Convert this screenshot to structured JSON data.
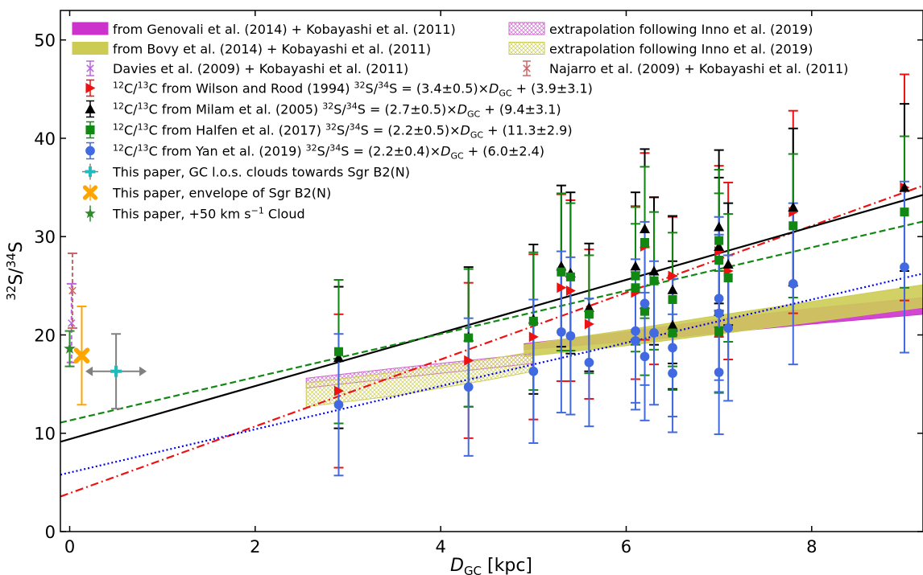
{
  "chart_data": {
    "type": "scatter",
    "xlabel_main": "D",
    "xlabel_sub": "GC",
    "xlabel_unit": " [kpc]",
    "ylabel_base": "S/",
    "ylabel_sup1": "32",
    "ylabel_sup2": "34",
    "ylabel_tail": "S",
    "xlim": [
      -0.1,
      9.2
    ],
    "ylim": [
      0,
      53
    ],
    "xticks": [
      0,
      2,
      4,
      6,
      8
    ],
    "yticks": [
      0,
      10,
      20,
      30,
      40,
      50
    ],
    "grid": false,
    "legend_placement": "top-left (two columns)",
    "legend": [
      {
        "text": "from Genovali et al. (2014) + Kobayashi et al. (2011)",
        "swatch": "band-solid",
        "color": "#cc33cc",
        "col": 0
      },
      {
        "text": "from Bovy et al. (2014) + Kobayashi et al. (2011)",
        "swatch": "band-solid",
        "color": "#cccc55",
        "col": 0
      },
      {
        "text": "Davies et al. (2009) + Kobayashi et al. (2011)",
        "swatch": "x",
        "color": "#bb66dd",
        "col": 0
      },
      {
        "text": "extrapolation following Inno et al. (2019)",
        "swatch": "band-hatch",
        "color": "#cc66cc",
        "col": 1
      },
      {
        "text": "extrapolation following Inno et al. (2019)",
        "swatch": "band-hatch",
        "color": "#cccc55",
        "col": 1
      },
      {
        "text": "Najarro et al. (2009) + Kobayashi et al. (2011)",
        "swatch": "x",
        "color": "#cc6666",
        "col": 1
      }
    ],
    "legend_series": [
      {
        "pre": "12",
        "mid": "C/",
        "pre2": "13",
        "text": "C from Wilson and Rood (1994)",
        "fit": "S = (3.4±0.5)×",
        "fit_tail": " + (3.9±3.1)",
        "marker": "triangle-right",
        "color": "#ee1111"
      },
      {
        "pre": "12",
        "mid": "C/",
        "pre2": "13",
        "text": "C from Milam et al. (2005)",
        "fit": "S = (2.7±0.5)×",
        "fit_tail": " + (9.4±3.1)",
        "marker": "triangle-up",
        "color": "#000000"
      },
      {
        "pre": "12",
        "mid": "C/",
        "pre2": "13",
        "text": "C from Halfen et al. (2017)",
        "fit": "S = (2.2±0.5)×",
        "fit_tail": " + (11.3±2.9)",
        "marker": "square",
        "color": "#118811"
      },
      {
        "pre": "12",
        "mid": "C/",
        "pre2": "13",
        "text": "C from Yan et al. (2019)",
        "fit": "S = (2.2±0.4)×",
        "fit_tail": " + (6.0±2.4)",
        "marker": "circle",
        "color": "#4169e1"
      }
    ],
    "legend_paper": [
      {
        "text": "This paper, GC l.o.s. clouds towards Sgr B2(N)",
        "marker": "plus",
        "color": "#22bbbb"
      },
      {
        "text": "This paper, envelope of Sgr B2(N)",
        "marker": "x-thick",
        "color": "#ffa500"
      },
      {
        "text": "This paper, +50 km s",
        "sup": "−1",
        "tail": " Cloud",
        "marker": "star",
        "color": "#2e8b2e"
      }
    ],
    "fit_lines": [
      {
        "name": "Wilson and Rood (1994)",
        "slope": 3.4,
        "intercept": 3.9,
        "style": "dashdot",
        "color": "#ee1111"
      },
      {
        "name": "Milam et al. (2005)",
        "slope": 2.7,
        "intercept": 9.4,
        "style": "solid",
        "color": "#000000"
      },
      {
        "name": "Halfen et al. (2017)",
        "slope": 2.2,
        "intercept": 11.3,
        "style": "dashed",
        "color": "#118811"
      },
      {
        "name": "Yan et al. (2019)",
        "slope": 2.2,
        "intercept": 6.0,
        "style": "dotted",
        "color": "#0000ee"
      }
    ],
    "bands": [
      {
        "name": "Genovali magenta",
        "color": "#cc33cc",
        "hatch": false,
        "points": [
          [
            4.9,
            18.5,
            19.1
          ],
          [
            6.0,
            19.3,
            20.3
          ],
          [
            7.0,
            20.2,
            21.6
          ],
          [
            8.0,
            21.1,
            22.7
          ],
          [
            9.2,
            22.1,
            23.8
          ]
        ]
      },
      {
        "name": "Bovy yellow",
        "color": "#cccc55",
        "hatch": false,
        "points": [
          [
            4.9,
            17.8,
            19.0
          ],
          [
            6.0,
            18.9,
            20.5
          ],
          [
            7.0,
            20.1,
            22.0
          ],
          [
            8.0,
            21.3,
            23.4
          ],
          [
            9.2,
            22.8,
            25.1
          ]
        ]
      },
      {
        "name": "Inno magenta",
        "color": "#cc66cc",
        "hatch": true,
        "points": [
          [
            2.55,
            14.6,
            15.6
          ],
          [
            3.5,
            15.6,
            16.6
          ],
          [
            4.5,
            16.6,
            17.6
          ],
          [
            5.0,
            17.1,
            18.1
          ]
        ]
      },
      {
        "name": "Inno yellow",
        "color": "#cccc55",
        "hatch": true,
        "points": [
          [
            2.55,
            12.7,
            15.1
          ],
          [
            3.5,
            13.8,
            16.2
          ],
          [
            4.5,
            15.4,
            17.5
          ],
          [
            5.0,
            16.3,
            18.3
          ]
        ]
      }
    ],
    "series": [
      {
        "name": "Wilson and Rood (1994)",
        "marker": "triangle-right",
        "color": "#ee1111",
        "points": [
          [
            2.9,
            14.3,
            7.8
          ],
          [
            4.3,
            17.4,
            7.9
          ],
          [
            5.0,
            19.8,
            8.4
          ],
          [
            5.3,
            24.8,
            9.5
          ],
          [
            5.4,
            24.5,
            9.2
          ],
          [
            5.6,
            21.1,
            7.6
          ],
          [
            6.1,
            24.3,
            8.8
          ],
          [
            6.2,
            29.0,
            9.5
          ],
          [
            6.3,
            25.5,
            8.5
          ],
          [
            6.5,
            26.0,
            6.0
          ],
          [
            7.0,
            28.5,
            8.7
          ],
          [
            7.1,
            26.5,
            9.0
          ],
          [
            7.8,
            32.5,
            10.3
          ],
          [
            9.0,
            35.0,
            11.5
          ]
        ]
      },
      {
        "name": "Milam et al. (2005)",
        "marker": "triangle-up",
        "color": "#000000",
        "points": [
          [
            2.9,
            17.7,
            7.2
          ],
          [
            4.3,
            19.8,
            7.1
          ],
          [
            5.0,
            21.6,
            7.6
          ],
          [
            5.3,
            27.0,
            8.2
          ],
          [
            5.4,
            26.3,
            8.2
          ],
          [
            5.6,
            22.8,
            6.5
          ],
          [
            6.1,
            27.0,
            7.5
          ],
          [
            6.2,
            30.8,
            8.1
          ],
          [
            6.3,
            26.5,
            7.5
          ],
          [
            6.5,
            24.6,
            7.5
          ],
          [
            6.5,
            21.0,
            6.5
          ],
          [
            7.0,
            31.0,
            7.8
          ],
          [
            7.0,
            29.0,
            7.0
          ],
          [
            7.1,
            27.2,
            6.2
          ],
          [
            7.8,
            33.0,
            8.0
          ],
          [
            9.0,
            35.0,
            8.5
          ]
        ]
      },
      {
        "name": "Halfen et al. (2017)",
        "marker": "square",
        "color": "#118811",
        "points": [
          [
            2.9,
            18.3,
            7.3
          ],
          [
            4.3,
            19.7,
            7.0
          ],
          [
            5.0,
            21.4,
            7.0
          ],
          [
            5.3,
            26.4,
            8.0
          ],
          [
            5.4,
            25.9,
            7.5
          ],
          [
            5.6,
            22.1,
            6.0
          ],
          [
            6.1,
            26.0,
            7.0
          ],
          [
            6.1,
            24.8,
            6.5
          ],
          [
            6.2,
            29.4,
            7.7
          ],
          [
            6.2,
            22.4,
            6.5
          ],
          [
            6.3,
            25.5,
            7.0
          ],
          [
            6.5,
            23.6,
            6.8
          ],
          [
            6.5,
            20.2,
            5.8
          ],
          [
            7.0,
            29.6,
            7.2
          ],
          [
            7.0,
            27.6,
            6.8
          ],
          [
            7.0,
            20.3,
            6.2
          ],
          [
            7.1,
            25.8,
            6.5
          ],
          [
            7.8,
            31.1,
            7.3
          ],
          [
            9.0,
            32.5,
            7.7
          ]
        ]
      },
      {
        "name": "Yan et al. (2019)",
        "marker": "circle",
        "color": "#4169e1",
        "points": [
          [
            2.9,
            12.9,
            7.2
          ],
          [
            4.3,
            14.7,
            7.0
          ],
          [
            5.0,
            16.3,
            7.3
          ],
          [
            5.3,
            20.3,
            8.2
          ],
          [
            5.4,
            19.9,
            8.0
          ],
          [
            5.6,
            17.2,
            6.5
          ],
          [
            6.1,
            20.4,
            7.3
          ],
          [
            6.1,
            19.4,
            7.0
          ],
          [
            6.2,
            23.2,
            8.3
          ],
          [
            6.2,
            17.8,
            6.5
          ],
          [
            6.3,
            20.2,
            7.3
          ],
          [
            6.5,
            18.7,
            7.0
          ],
          [
            6.5,
            16.1,
            6.0
          ],
          [
            7.0,
            23.7,
            8.3
          ],
          [
            7.0,
            22.2,
            8.0
          ],
          [
            7.0,
            16.2,
            6.3
          ],
          [
            7.1,
            20.7,
            7.4
          ],
          [
            7.8,
            25.2,
            8.2
          ],
          [
            9.0,
            26.9,
            8.7
          ]
        ]
      }
    ],
    "paper_points": [
      {
        "name": "GC l.o.s. clouds",
        "marker": "plus",
        "color": "#22bbbb",
        "x": 0.5,
        "y": 16.3,
        "xerr": 0.33,
        "yerr": 3.8,
        "errcolor": "#808080"
      },
      {
        "name": "envelope of Sgr B2(N)",
        "marker": "x-thick",
        "color": "#ffa500",
        "x": 0.13,
        "y": 17.9,
        "xerr": 0,
        "yerr": 5.0,
        "errcolor": "#ffa500"
      },
      {
        "name": "+50 km/s Cloud",
        "marker": "star",
        "color": "#2e8b2e",
        "x": 0.0,
        "y": 18.6,
        "xerr": 0,
        "yerr": 1.8,
        "errcolor": "#2e8b2e"
      }
    ],
    "literature_points": [
      {
        "name": "Davies",
        "x": 0.02,
        "y": 21.2,
        "yerr": 4.0,
        "color": "#bb66dd"
      },
      {
        "name": "Najarro",
        "x": 0.03,
        "y": 24.5,
        "yerr": 3.8,
        "color": "#cc6666"
      }
    ]
  }
}
